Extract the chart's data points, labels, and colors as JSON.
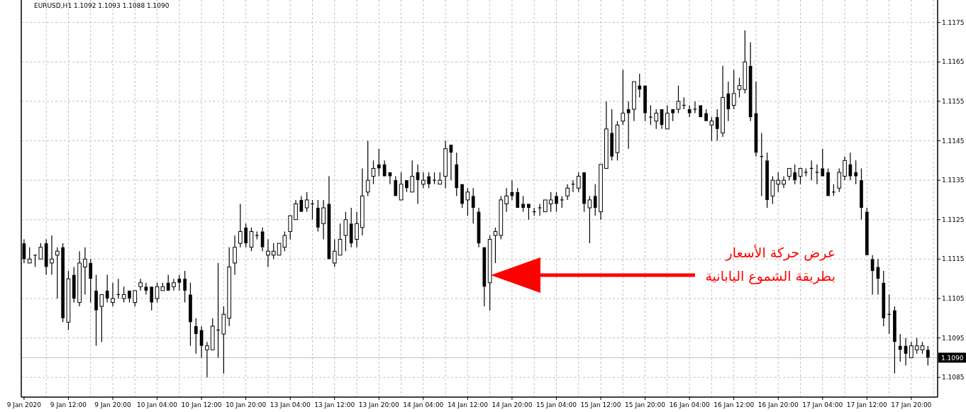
{
  "chart_data": {
    "type": "candlestick",
    "title": "EURUSD,H1 1.1092 1.1093 1.1088 1.1090",
    "categories": [
      "9 Jan 2020",
      null,
      null,
      null,
      null,
      null,
      null,
      null,
      "9 Jan 12:00",
      null,
      null,
      null,
      null,
      null,
      null,
      null,
      "9 Jan 20:00",
      null,
      null,
      null,
      null,
      null,
      null,
      null,
      "10 Jan 04:00",
      null,
      null,
      null,
      null,
      null,
      null,
      null,
      "10 Jan 12:00",
      null,
      null,
      null,
      null,
      null,
      null,
      null,
      "10 Jan 20:00",
      null,
      null,
      null,
      null,
      null,
      null,
      null,
      "13 Jan 04:00",
      null,
      null,
      null,
      null,
      null,
      null,
      null,
      "13 Jan 12:00",
      null,
      null,
      null,
      null,
      null,
      null,
      null,
      "13 Jan 20:00",
      null,
      null,
      null,
      null,
      null,
      null,
      null,
      "14 Jan 04:00",
      null,
      null,
      null,
      null,
      null,
      null,
      null,
      "14 Jan 12:00",
      null,
      null,
      null,
      null,
      null,
      null,
      null,
      "14 Jan 20:00",
      null,
      null,
      null,
      null,
      null,
      null,
      null,
      "15 Jan 04:00",
      null,
      null,
      null,
      null,
      null,
      null,
      null,
      "15 Jan 12:00",
      null,
      null,
      null,
      null,
      null,
      null,
      null,
      "15 Jan 20:00",
      null,
      null,
      null,
      null,
      null,
      null,
      null,
      "16 Jan 04:00",
      null,
      null,
      null,
      null,
      null,
      null,
      null,
      "16 Jan 12:00",
      null,
      null,
      null,
      null,
      null,
      null,
      null,
      "16 Jan 20:00",
      null,
      null,
      null,
      null,
      null,
      null,
      null,
      "17 Jan 04:00",
      null,
      null,
      null,
      null,
      null,
      null,
      null,
      "17 Jan 12:00",
      null,
      null,
      null,
      null,
      null,
      null,
      null,
      "17 Jan 20:00",
      null,
      null,
      null
    ],
    "ohlc": [
      [
        1.1119,
        1.112,
        1.1114,
        1.1115
      ],
      [
        1.1114,
        1.1118,
        1.1114,
        1.1115
      ],
      [
        1.1116,
        1.1116,
        1.1113,
        1.1116
      ],
      [
        1.1115,
        1.1119,
        1.1115,
        1.1118
      ],
      [
        1.1119,
        1.112,
        1.1111,
        1.1113
      ],
      [
        1.1114,
        1.1121,
        1.1111,
        1.1115
      ],
      [
        1.1116,
        1.1118,
        1.1105,
        1.1117
      ],
      [
        1.1118,
        1.1119,
        1.1099,
        1.11
      ],
      [
        1.1099,
        1.1112,
        1.1097,
        1.111
      ],
      [
        1.1111,
        1.1113,
        1.1104,
        1.1105
      ],
      [
        1.1104,
        1.1117,
        1.1103,
        1.1114
      ],
      [
        1.1113,
        1.1118,
        1.1106,
        1.1115
      ],
      [
        1.1114,
        1.1115,
        1.1104,
        1.111
      ],
      [
        1.1107,
        1.1111,
        1.1093,
        1.1102
      ],
      [
        1.1103,
        1.1106,
        1.1094,
        1.1106
      ],
      [
        1.1107,
        1.1111,
        1.1104,
        1.1105
      ],
      [
        1.1104,
        1.1109,
        1.1103,
        1.1105
      ],
      [
        1.1106,
        1.111,
        1.1105,
        1.1106
      ],
      [
        1.1105,
        1.1108,
        1.1104,
        1.1106
      ],
      [
        1.1107,
        1.1107,
        1.1104,
        1.1105
      ],
      [
        1.1104,
        1.1107,
        1.1103,
        1.1107
      ],
      [
        1.1108,
        1.111,
        1.1107,
        1.1109
      ],
      [
        1.1108,
        1.1109,
        1.1106,
        1.1107
      ],
      [
        1.1108,
        1.1108,
        1.1102,
        1.1104
      ],
      [
        1.1105,
        1.1109,
        1.1104,
        1.1108
      ],
      [
        1.1107,
        1.1109,
        1.1107,
        1.1108
      ],
      [
        1.1109,
        1.1111,
        1.1107,
        1.1107
      ],
      [
        1.1108,
        1.111,
        1.1107,
        1.1109
      ],
      [
        1.111,
        1.1111,
        1.1107,
        1.1109
      ],
      [
        1.111,
        1.1112,
        1.1104,
        1.1107
      ],
      [
        1.1106,
        1.1109,
        1.1093,
        1.1099
      ],
      [
        1.1098,
        1.11,
        1.1091,
        1.1096
      ],
      [
        1.1097,
        1.1098,
        1.109,
        1.1093
      ],
      [
        1.1092,
        1.1094,
        1.1085,
        1.1093
      ],
      [
        1.1092,
        1.11,
        1.1092,
        1.1098
      ],
      [
        1.1097,
        1.1114,
        1.109,
        1.1097
      ],
      [
        1.1096,
        1.1103,
        1.1086,
        1.1101
      ],
      [
        1.11,
        1.1118,
        1.1098,
        1.1113
      ],
      [
        1.1114,
        1.1121,
        1.1111,
        1.1118
      ],
      [
        1.1119,
        1.1129,
        1.1118,
        1.1122
      ],
      [
        1.1123,
        1.1124,
        1.1118,
        1.1119
      ],
      [
        1.1118,
        1.1123,
        1.1117,
        1.1122
      ],
      [
        1.1121,
        1.1122,
        1.112,
        1.1121
      ],
      [
        1.1122,
        1.1123,
        1.1117,
        1.1118
      ],
      [
        1.1116,
        1.112,
        1.1113,
        1.1117
      ],
      [
        1.1116,
        1.1119,
        1.1115,
        1.1117
      ],
      [
        1.1116,
        1.1119,
        1.1116,
        1.1119
      ],
      [
        1.1118,
        1.1122,
        1.1117,
        1.1121
      ],
      [
        1.1122,
        1.1126,
        1.112,
        1.1126
      ],
      [
        1.1125,
        1.113,
        1.1125,
        1.1129
      ],
      [
        1.113,
        1.1131,
        1.1127,
        1.1127
      ],
      [
        1.1128,
        1.1132,
        1.1127,
        1.113
      ],
      [
        1.1129,
        1.113,
        1.1125,
        1.1129
      ],
      [
        1.1128,
        1.113,
        1.1122,
        1.1123
      ],
      [
        1.1124,
        1.113,
        1.112,
        1.1128
      ],
      [
        1.1129,
        1.1136,
        1.1115,
        1.1115
      ],
      [
        1.1114,
        1.112,
        1.1113,
        1.1117
      ],
      [
        1.1116,
        1.1124,
        1.1116,
        1.112
      ],
      [
        1.1121,
        1.1127,
        1.1117,
        1.1125
      ],
      [
        1.1124,
        1.1128,
        1.1118,
        1.1119
      ],
      [
        1.112,
        1.1127,
        1.1118,
        1.1124
      ],
      [
        1.1123,
        1.1138,
        1.1121,
        1.1131
      ],
      [
        1.1132,
        1.1145,
        1.1131,
        1.1135
      ],
      [
        1.1136,
        1.114,
        1.1134,
        1.1138
      ],
      [
        1.1139,
        1.1143,
        1.1136,
        1.1138
      ],
      [
        1.1139,
        1.114,
        1.1136,
        1.1136
      ],
      [
        1.1137,
        1.1137,
        1.1134,
        1.1136
      ],
      [
        1.1135,
        1.1136,
        1.1131,
        1.1131
      ],
      [
        1.113,
        1.1137,
        1.113,
        1.1134
      ],
      [
        1.1135,
        1.1135,
        1.1132,
        1.1133
      ],
      [
        1.1132,
        1.114,
        1.1132,
        1.1136
      ],
      [
        1.1137,
        1.1139,
        1.1129,
        1.1135
      ],
      [
        1.1134,
        1.1137,
        1.1133,
        1.1135
      ],
      [
        1.1136,
        1.1137,
        1.1133,
        1.1134
      ],
      [
        1.1135,
        1.1137,
        1.1134,
        1.1135
      ],
      [
        1.1134,
        1.1137,
        1.1134,
        1.1135
      ],
      [
        1.1136,
        1.1145,
        1.1133,
        1.1143
      ],
      [
        1.1144,
        1.1144,
        1.1135,
        1.1142
      ],
      [
        1.1139,
        1.1142,
        1.1131,
        1.1133
      ],
      [
        1.1134,
        1.1134,
        1.1128,
        1.1129
      ],
      [
        1.113,
        1.1133,
        1.1126,
        1.1132
      ],
      [
        1.1131,
        1.1133,
        1.1124,
        1.1128
      ],
      [
        1.1127,
        1.1128,
        1.1118,
        1.1119
      ],
      [
        1.1118,
        1.1118,
        1.1103,
        1.1108
      ],
      [
        1.1109,
        1.1121,
        1.1102,
        1.112
      ],
      [
        1.1121,
        1.1123,
        1.1114,
        1.1122
      ],
      [
        1.1121,
        1.1131,
        1.112,
        1.113
      ],
      [
        1.1129,
        1.1133,
        1.1127,
        1.1131
      ],
      [
        1.1132,
        1.1135,
        1.113,
        1.1131
      ],
      [
        1.1132,
        1.1133,
        1.1128,
        1.1128
      ],
      [
        1.1129,
        1.1131,
        1.1127,
        1.1128
      ],
      [
        1.1129,
        1.1129,
        1.1125,
        1.1128
      ],
      [
        1.1127,
        1.1128,
        1.1126,
        1.1127
      ],
      [
        1.1128,
        1.1129,
        1.1126,
        1.1128
      ],
      [
        1.1127,
        1.113,
        1.1127,
        1.113
      ],
      [
        1.1129,
        1.1132,
        1.1127,
        1.113
      ],
      [
        1.1131,
        1.1132,
        1.1127,
        1.1129
      ],
      [
        1.113,
        1.1131,
        1.1128,
        1.113
      ],
      [
        1.1131,
        1.1134,
        1.113,
        1.1133
      ],
      [
        1.1134,
        1.1135,
        1.1132,
        1.1134
      ],
      [
        1.1133,
        1.1137,
        1.1132,
        1.1136
      ],
      [
        1.1137,
        1.1137,
        1.1127,
        1.1129
      ],
      [
        1.1128,
        1.1131,
        1.1119,
        1.113
      ],
      [
        1.1131,
        1.1134,
        1.1126,
        1.1128
      ],
      [
        1.1127,
        1.1139,
        1.1125,
        1.1139
      ],
      [
        1.1138,
        1.1155,
        1.1138,
        1.1148
      ],
      [
        1.1147,
        1.1153,
        1.114,
        1.1141
      ],
      [
        1.1142,
        1.115,
        1.114,
        1.1149
      ],
      [
        1.115,
        1.1163,
        1.1149,
        1.1152
      ],
      [
        1.1153,
        1.1155,
        1.1143,
        1.1152
      ],
      [
        1.1153,
        1.116,
        1.115,
        1.116
      ],
      [
        1.1159,
        1.1162,
        1.1156,
        1.1158
      ],
      [
        1.1159,
        1.1159,
        1.115,
        1.1152
      ],
      [
        1.1151,
        1.1154,
        1.1149,
        1.1151
      ],
      [
        1.115,
        1.1153,
        1.1148,
        1.1152
      ],
      [
        1.1153,
        1.1153,
        1.1148,
        1.1149
      ],
      [
        1.1148,
        1.1154,
        1.1148,
        1.1152
      ],
      [
        1.1153,
        1.1153,
        1.115,
        1.1152
      ],
      [
        1.1153,
        1.1159,
        1.1152,
        1.1155
      ],
      [
        1.1154,
        1.1156,
        1.1153,
        1.1154
      ],
      [
        1.1153,
        1.1154,
        1.1151,
        1.1152
      ],
      [
        1.1153,
        1.1155,
        1.1152,
        1.1153
      ],
      [
        1.1154,
        1.1154,
        1.1151,
        1.1151
      ],
      [
        1.1152,
        1.1153,
        1.115,
        1.115
      ],
      [
        1.1149,
        1.1151,
        1.1145,
        1.115
      ],
      [
        1.1151,
        1.1153,
        1.1145,
        1.1148
      ],
      [
        1.1147,
        1.1164,
        1.1146,
        1.1156
      ],
      [
        1.1157,
        1.116,
        1.115,
        1.1153
      ],
      [
        1.1154,
        1.1163,
        1.1153,
        1.1157
      ],
      [
        1.1158,
        1.1161,
        1.1156,
        1.1159
      ],
      [
        1.1158,
        1.1173,
        1.1157,
        1.1165
      ],
      [
        1.1164,
        1.117,
        1.115,
        1.1151
      ],
      [
        1.1152,
        1.116,
        1.1141,
        1.1142
      ],
      [
        1.1141,
        1.1147,
        1.1131,
        1.1141
      ],
      [
        1.114,
        1.1142,
        1.1128,
        1.113
      ],
      [
        1.1131,
        1.1136,
        1.1129,
        1.1135
      ],
      [
        1.1134,
        1.1137,
        1.1132,
        1.1135
      ],
      [
        1.1134,
        1.1136,
        1.1133,
        1.1135
      ],
      [
        1.1136,
        1.1138,
        1.1135,
        1.1138
      ],
      [
        1.1137,
        1.1139,
        1.1134,
        1.1135
      ],
      [
        1.1136,
        1.1138,
        1.1134,
        1.1138
      ],
      [
        1.1137,
        1.1138,
        1.1136,
        1.1137
      ],
      [
        1.1138,
        1.114,
        1.1135,
        1.1138
      ],
      [
        1.1137,
        1.1139,
        1.1134,
        1.1137
      ],
      [
        1.1138,
        1.1143,
        1.1136,
        1.1136
      ],
      [
        1.1137,
        1.1138,
        1.1131,
        1.1131
      ],
      [
        1.1132,
        1.1134,
        1.1131,
        1.1132
      ],
      [
        1.1133,
        1.1138,
        1.1132,
        1.1137
      ],
      [
        1.1136,
        1.1141,
        1.1135,
        1.114
      ],
      [
        1.1139,
        1.1142,
        1.1135,
        1.1136
      ],
      [
        1.1137,
        1.114,
        1.1134,
        1.1136
      ],
      [
        1.1135,
        1.1138,
        1.1125,
        1.1128
      ],
      [
        1.1127,
        1.1128,
        1.1116,
        1.1116
      ],
      [
        1.1115,
        1.1116,
        1.1106,
        1.1112
      ],
      [
        1.1113,
        1.1115,
        1.1106,
        1.111
      ],
      [
        1.1109,
        1.1112,
        1.1098,
        1.11
      ],
      [
        1.1101,
        1.1106,
        1.1096,
        1.1101
      ],
      [
        1.1102,
        1.1103,
        1.1086,
        1.1094
      ],
      [
        1.1093,
        1.1096,
        1.1089,
        1.1092
      ],
      [
        1.1093,
        1.1095,
        1.1088,
        1.1091
      ],
      [
        1.109,
        1.1094,
        1.109,
        1.1093
      ],
      [
        1.1092,
        1.1095,
        1.1091,
        1.1093
      ],
      [
        1.1092,
        1.1094,
        1.1091,
        1.1093
      ],
      [
        1.1092,
        1.1093,
        1.1088,
        1.109
      ]
    ],
    "ylim": [
      1.108,
      1.11807
    ],
    "yticks": [
      1.1085,
      1.1095,
      1.1105,
      1.1115,
      1.1125,
      1.1135,
      1.1145,
      1.1155,
      1.1165,
      1.1175
    ],
    "grid": true,
    "ref_lines": [
      {
        "axis": "y",
        "value": 1.109,
        "label": "1.1090",
        "color": "#c0c0c0"
      }
    ],
    "annotations": [
      "عرض حركة الأسعار",
      "بطريقة الشموع اليابانية"
    ]
  }
}
